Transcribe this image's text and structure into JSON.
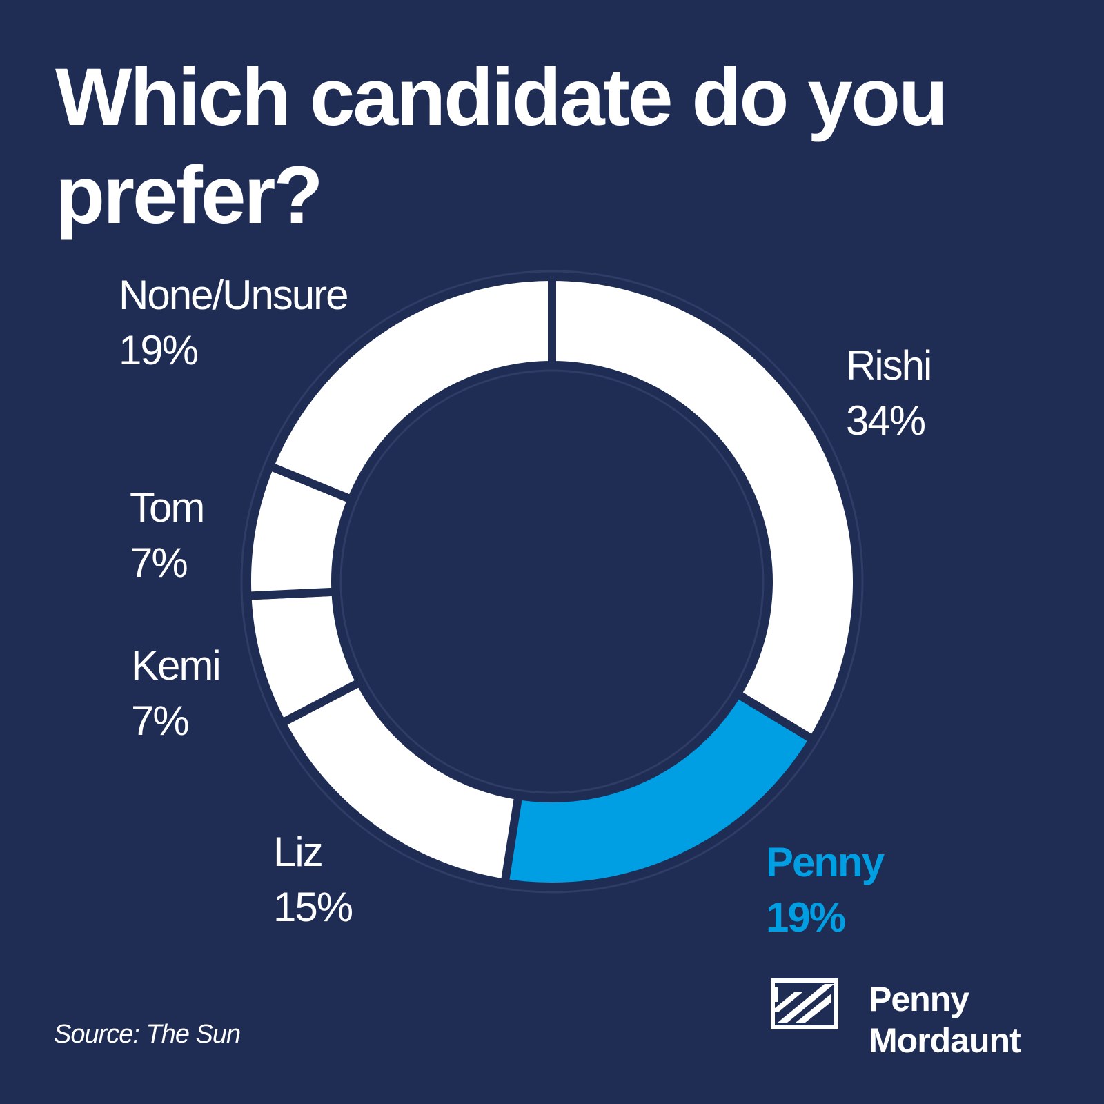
{
  "title": "Which candidate do you prefer?",
  "source": "Source: The Sun",
  "logo": {
    "line1": "Penny",
    "line2": "Mordaunt",
    "icon": "union-flag-stripes-icon"
  },
  "colors": {
    "background": "#1f2d55",
    "slice": "#ffffff",
    "highlight": "#009fe3"
  },
  "chart_data": {
    "type": "pie",
    "style": "donut",
    "slices": [
      {
        "label": "Rishi",
        "value": 34,
        "value_label": "34%",
        "highlight": false
      },
      {
        "label": "Penny",
        "value": 19,
        "value_label": "19%",
        "highlight": true
      },
      {
        "label": "Liz",
        "value": 15,
        "value_label": "15%",
        "highlight": false
      },
      {
        "label": "Kemi",
        "value": 7,
        "value_label": "7%",
        "highlight": false
      },
      {
        "label": "Tom",
        "value": 7,
        "value_label": "7%",
        "highlight": false
      },
      {
        "label": "None/Unsure",
        "value": 19,
        "value_label": "19%",
        "highlight": false
      }
    ]
  }
}
